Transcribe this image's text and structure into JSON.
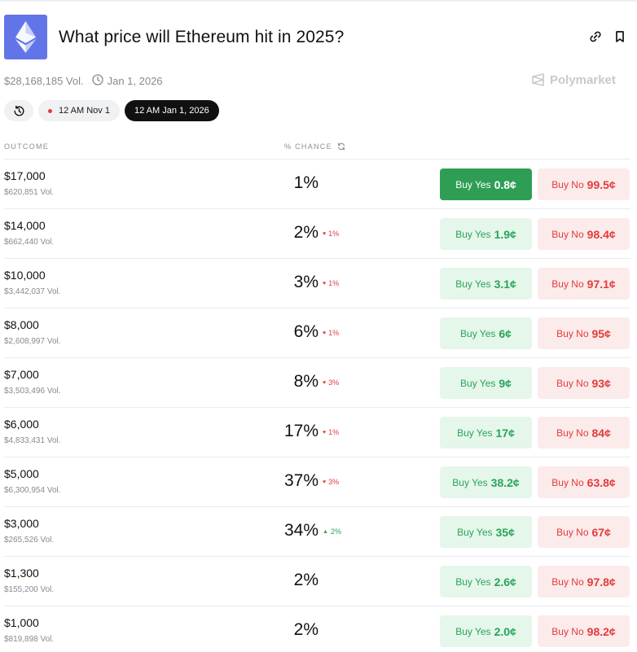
{
  "header": {
    "title": "What price will Ethereum hit in 2025?",
    "logo_icon": "ethereum-logo-icon",
    "logo_color": "#6275e8"
  },
  "meta": {
    "volume": "$28,168,185 Vol.",
    "end_date": "Jan 1, 2026",
    "brand": "Polymarket"
  },
  "filters": {
    "history_icon": "history-icon",
    "pills": [
      {
        "label": "12 AM Nov 1",
        "live": true,
        "active": false
      },
      {
        "label": "12 AM Jan 1, 2026",
        "live": false,
        "active": true
      }
    ]
  },
  "columns": {
    "outcome": "OUTCOME",
    "chance": "% CHANCE"
  },
  "colors": {
    "yes": "#27a55a",
    "yes_filled": "#2f9e55",
    "no": "#e23b3b"
  },
  "rows": [
    {
      "label": "$17,000",
      "volume": "$620,851 Vol.",
      "chance": "1%",
      "delta": "",
      "delta_dir": "",
      "yes_label": "Buy Yes",
      "yes_price": "0.8¢",
      "no_label": "Buy No",
      "no_price": "99.5¢",
      "yes_filled": true
    },
    {
      "label": "$14,000",
      "volume": "$662,440 Vol.",
      "chance": "2%",
      "delta": "1%",
      "delta_dir": "down",
      "yes_label": "Buy Yes",
      "yes_price": "1.9¢",
      "no_label": "Buy No",
      "no_price": "98.4¢",
      "yes_filled": false
    },
    {
      "label": "$10,000",
      "volume": "$3,442,037 Vol.",
      "chance": "3%",
      "delta": "1%",
      "delta_dir": "down",
      "yes_label": "Buy Yes",
      "yes_price": "3.1¢",
      "no_label": "Buy No",
      "no_price": "97.1¢",
      "yes_filled": false
    },
    {
      "label": "$8,000",
      "volume": "$2,608,997 Vol.",
      "chance": "6%",
      "delta": "1%",
      "delta_dir": "down",
      "yes_label": "Buy Yes",
      "yes_price": "6¢",
      "no_label": "Buy No",
      "no_price": "95¢",
      "yes_filled": false
    },
    {
      "label": "$7,000",
      "volume": "$3,503,496 Vol.",
      "chance": "8%",
      "delta": "3%",
      "delta_dir": "down",
      "yes_label": "Buy Yes",
      "yes_price": "9¢",
      "no_label": "Buy No",
      "no_price": "93¢",
      "yes_filled": false
    },
    {
      "label": "$6,000",
      "volume": "$4,833,431 Vol.",
      "chance": "17%",
      "delta": "1%",
      "delta_dir": "down",
      "yes_label": "Buy Yes",
      "yes_price": "17¢",
      "no_label": "Buy No",
      "no_price": "84¢",
      "yes_filled": false
    },
    {
      "label": "$5,000",
      "volume": "$6,300,954 Vol.",
      "chance": "37%",
      "delta": "3%",
      "delta_dir": "down",
      "yes_label": "Buy Yes",
      "yes_price": "38.2¢",
      "no_label": "Buy No",
      "no_price": "63.8¢",
      "yes_filled": false
    },
    {
      "label": "$3,000",
      "volume": "$265,526 Vol.",
      "chance": "34%",
      "delta": "2%",
      "delta_dir": "up",
      "yes_label": "Buy Yes",
      "yes_price": "35¢",
      "no_label": "Buy No",
      "no_price": "67¢",
      "yes_filled": false
    },
    {
      "label": "$1,300",
      "volume": "$155,200 Vol.",
      "chance": "2%",
      "delta": "",
      "delta_dir": "",
      "yes_label": "Buy Yes",
      "yes_price": "2.6¢",
      "no_label": "Buy No",
      "no_price": "97.8¢",
      "yes_filled": false
    },
    {
      "label": "$1,000",
      "volume": "$819,898 Vol.",
      "chance": "2%",
      "delta": "",
      "delta_dir": "",
      "yes_label": "Buy Yes",
      "yes_price": "2.0¢",
      "no_label": "Buy No",
      "no_price": "98.2¢",
      "yes_filled": false
    }
  ]
}
